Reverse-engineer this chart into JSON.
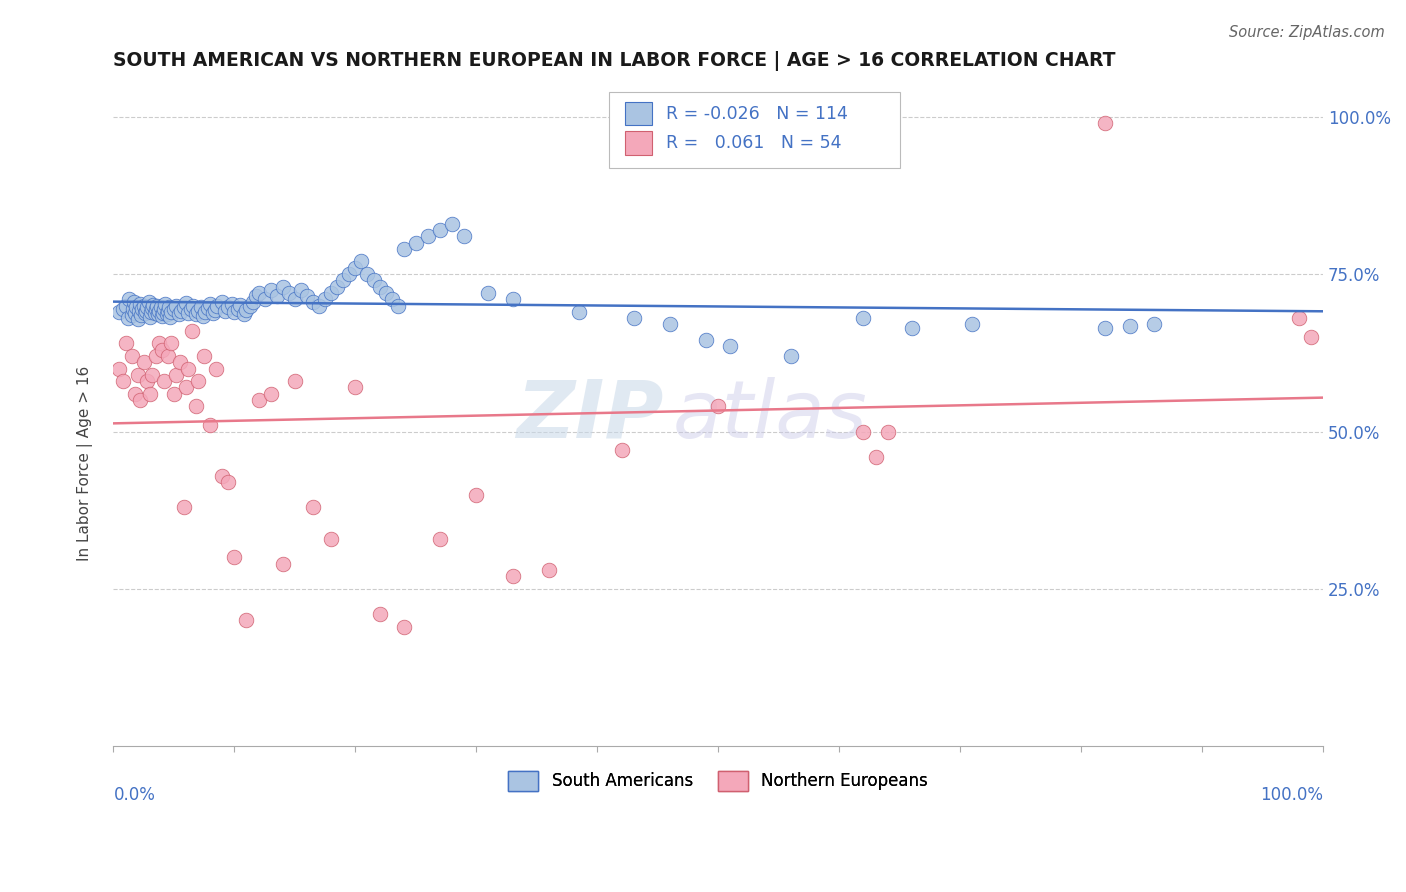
{
  "title": "SOUTH AMERICAN VS NORTHERN EUROPEAN IN LABOR FORCE | AGE > 16 CORRELATION CHART",
  "source": "Source: ZipAtlas.com",
  "ylabel": "In Labor Force | Age > 16",
  "legend_label1": "South Americans",
  "legend_label2": "Northern Europeans",
  "R1": -0.026,
  "N1": 114,
  "R2": 0.061,
  "N2": 54,
  "blue_color": "#aac4e2",
  "pink_color": "#f4a8ba",
  "blue_line_color": "#4472c4",
  "pink_line_color": "#e8788a",
  "watermark_zip": "ZIP",
  "watermark_atlas": "atlas",
  "background_color": "#ffffff",
  "blue_x": [
    0.005,
    0.008,
    0.01,
    0.012,
    0.013,
    0.015,
    0.016,
    0.017,
    0.018,
    0.019,
    0.02,
    0.021,
    0.022,
    0.023,
    0.024,
    0.025,
    0.026,
    0.027,
    0.028,
    0.029,
    0.03,
    0.031,
    0.032,
    0.033,
    0.034,
    0.035,
    0.036,
    0.037,
    0.038,
    0.039,
    0.04,
    0.041,
    0.042,
    0.043,
    0.044,
    0.045,
    0.046,
    0.047,
    0.048,
    0.05,
    0.052,
    0.054,
    0.056,
    0.058,
    0.06,
    0.062,
    0.064,
    0.066,
    0.068,
    0.07,
    0.072,
    0.074,
    0.076,
    0.078,
    0.08,
    0.082,
    0.084,
    0.086,
    0.09,
    0.092,
    0.095,
    0.098,
    0.1,
    0.103,
    0.105,
    0.108,
    0.11,
    0.113,
    0.115,
    0.118,
    0.12,
    0.125,
    0.13,
    0.135,
    0.14,
    0.145,
    0.15,
    0.155,
    0.16,
    0.165,
    0.17,
    0.175,
    0.18,
    0.185,
    0.19,
    0.195,
    0.2,
    0.205,
    0.21,
    0.215,
    0.22,
    0.225,
    0.23,
    0.235,
    0.24,
    0.25,
    0.26,
    0.27,
    0.28,
    0.29,
    0.31,
    0.33,
    0.385,
    0.43,
    0.46,
    0.49,
    0.51,
    0.56,
    0.62,
    0.66,
    0.71,
    0.82,
    0.84,
    0.86
  ],
  "blue_y": [
    0.69,
    0.695,
    0.7,
    0.68,
    0.71,
    0.685,
    0.695,
    0.705,
    0.688,
    0.698,
    0.678,
    0.692,
    0.702,
    0.685,
    0.695,
    0.7,
    0.688,
    0.692,
    0.698,
    0.705,
    0.682,
    0.69,
    0.696,
    0.701,
    0.688,
    0.694,
    0.7,
    0.686,
    0.692,
    0.698,
    0.684,
    0.688,
    0.695,
    0.702,
    0.686,
    0.692,
    0.698,
    0.682,
    0.69,
    0.695,
    0.7,
    0.686,
    0.692,
    0.698,
    0.704,
    0.688,
    0.694,
    0.7,
    0.686,
    0.692,
    0.698,
    0.684,
    0.69,
    0.696,
    0.702,
    0.688,
    0.693,
    0.699,
    0.705,
    0.691,
    0.697,
    0.703,
    0.689,
    0.695,
    0.701,
    0.687,
    0.693,
    0.699,
    0.705,
    0.715,
    0.72,
    0.71,
    0.725,
    0.715,
    0.73,
    0.72,
    0.71,
    0.725,
    0.715,
    0.705,
    0.7,
    0.71,
    0.72,
    0.73,
    0.74,
    0.75,
    0.76,
    0.77,
    0.75,
    0.74,
    0.73,
    0.72,
    0.71,
    0.7,
    0.79,
    0.8,
    0.81,
    0.82,
    0.83,
    0.81,
    0.72,
    0.71,
    0.69,
    0.68,
    0.67,
    0.645,
    0.635,
    0.62,
    0.68,
    0.665,
    0.67,
    0.665,
    0.668,
    0.67
  ],
  "pink_x": [
    0.005,
    0.008,
    0.01,
    0.015,
    0.018,
    0.02,
    0.022,
    0.025,
    0.028,
    0.03,
    0.032,
    0.035,
    0.038,
    0.04,
    0.042,
    0.045,
    0.048,
    0.05,
    0.052,
    0.055,
    0.058,
    0.06,
    0.062,
    0.065,
    0.068,
    0.07,
    0.075,
    0.08,
    0.085,
    0.09,
    0.095,
    0.1,
    0.11,
    0.12,
    0.13,
    0.14,
    0.15,
    0.165,
    0.18,
    0.2,
    0.22,
    0.24,
    0.27,
    0.3,
    0.33,
    0.36,
    0.42,
    0.5,
    0.62,
    0.63,
    0.64,
    0.82,
    0.98,
    0.99
  ],
  "pink_y": [
    0.6,
    0.58,
    0.64,
    0.62,
    0.56,
    0.59,
    0.55,
    0.61,
    0.58,
    0.56,
    0.59,
    0.62,
    0.64,
    0.63,
    0.58,
    0.62,
    0.64,
    0.56,
    0.59,
    0.61,
    0.38,
    0.57,
    0.6,
    0.66,
    0.54,
    0.58,
    0.62,
    0.51,
    0.6,
    0.43,
    0.42,
    0.3,
    0.2,
    0.55,
    0.56,
    0.29,
    0.58,
    0.38,
    0.33,
    0.57,
    0.21,
    0.19,
    0.33,
    0.4,
    0.27,
    0.28,
    0.47,
    0.54,
    0.5,
    0.46,
    0.5,
    0.99,
    0.68,
    0.65
  ]
}
